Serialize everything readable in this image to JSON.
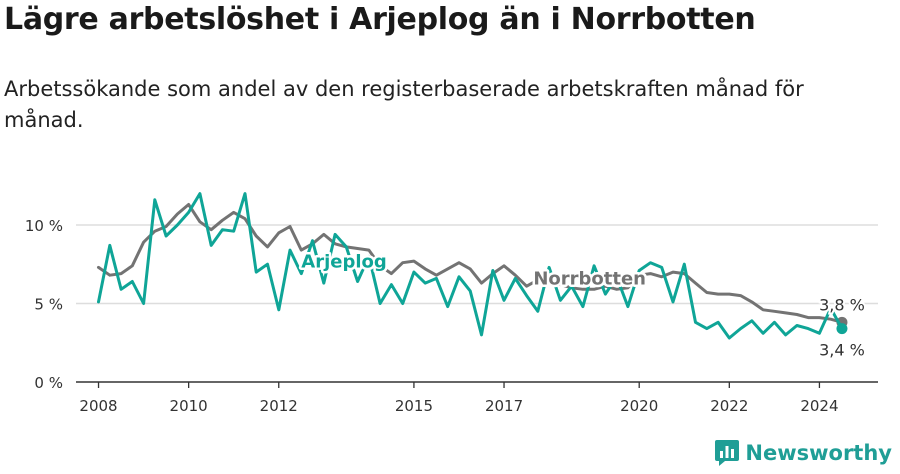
{
  "title": "Lägre arbetslöshet i Arjeplog än i Norrbotten",
  "subtitle": "Arbetssökande som andel av den registerbaserade arbetskraften månad för månad.",
  "brand": {
    "name": "Newsworthy",
    "icon": "bar-chart-logo-icon",
    "color": "#1f9e96"
  },
  "chart_data": {
    "type": "line",
    "xlabel": "",
    "ylabel": "",
    "xlim": [
      2007.5,
      2025.3
    ],
    "ylim": [
      0,
      13.5
    ],
    "grid": true,
    "y_ticks": [
      0,
      5,
      10
    ],
    "y_tick_labels": [
      "0 %",
      "5 %",
      "10 %"
    ],
    "x_ticks": [
      2008,
      2010,
      2012,
      2015,
      2017,
      2020,
      2022,
      2024
    ],
    "x_tick_labels": [
      "2008",
      "2010",
      "2012",
      "2015",
      "2017",
      "2020",
      "2022",
      "2024"
    ],
    "colors": {
      "Arjeplog": "#0fa597",
      "Norrbotten": "#737373",
      "grid": "#dddddd",
      "axis": "#333333"
    },
    "labels": [
      {
        "series": "Arjeplog",
        "text": "Arjeplog",
        "x": 2012.5,
        "y": 7.3
      },
      {
        "series": "Norrbotten",
        "text": "Norrbotten",
        "x": 2017.65,
        "y": 6.2
      }
    ],
    "end_labels": {
      "Norrbotten": "3,8 %",
      "Arjeplog": "3,4 %"
    },
    "series": [
      {
        "name": "Norrbotten",
        "x": [
          2008.0,
          2008.25,
          2008.5,
          2008.75,
          2009.0,
          2009.25,
          2009.5,
          2009.75,
          2010.0,
          2010.25,
          2010.5,
          2010.75,
          2011.0,
          2011.25,
          2011.5,
          2011.75,
          2012.0,
          2012.25,
          2012.5,
          2012.75,
          2013.0,
          2013.25,
          2013.5,
          2013.75,
          2014.0,
          2014.25,
          2014.5,
          2014.75,
          2015.0,
          2015.25,
          2015.5,
          2015.75,
          2016.0,
          2016.25,
          2016.5,
          2016.75,
          2017.0,
          2017.25,
          2017.5,
          2017.75,
          2018.0,
          2018.25,
          2018.5,
          2018.75,
          2019.0,
          2019.25,
          2019.5,
          2019.75,
          2020.0,
          2020.25,
          2020.5,
          2020.75,
          2021.0,
          2021.25,
          2021.5,
          2021.75,
          2022.0,
          2022.25,
          2022.5,
          2022.75,
          2023.0,
          2023.25,
          2023.5,
          2023.75,
          2024.0,
          2024.25,
          2024.5
        ],
        "y": [
          7.3,
          6.8,
          6.9,
          7.4,
          8.9,
          9.6,
          9.9,
          10.7,
          11.3,
          10.2,
          9.7,
          10.3,
          10.8,
          10.4,
          9.3,
          8.6,
          9.5,
          9.9,
          8.4,
          8.8,
          9.4,
          8.8,
          8.6,
          8.5,
          8.4,
          7.4,
          6.9,
          7.6,
          7.7,
          7.2,
          6.8,
          7.2,
          7.6,
          7.2,
          6.3,
          6.9,
          7.4,
          6.8,
          6.1,
          6.5,
          6.4,
          6.2,
          6.0,
          5.9,
          5.9,
          6.1,
          5.9,
          6.0,
          6.8,
          6.9,
          6.7,
          7.0,
          6.9,
          6.3,
          5.7,
          5.6,
          5.6,
          5.5,
          5.1,
          4.6,
          4.5,
          4.4,
          4.3,
          4.1,
          4.1,
          4.0,
          3.8
        ]
      },
      {
        "name": "Arjeplog",
        "x": [
          2008.0,
          2008.25,
          2008.5,
          2008.75,
          2009.0,
          2009.25,
          2009.5,
          2009.75,
          2010.0,
          2010.25,
          2010.5,
          2010.75,
          2011.0,
          2011.25,
          2011.5,
          2011.75,
          2012.0,
          2012.25,
          2012.5,
          2012.75,
          2013.0,
          2013.25,
          2013.5,
          2013.75,
          2014.0,
          2014.25,
          2014.5,
          2014.75,
          2015.0,
          2015.25,
          2015.5,
          2015.75,
          2016.0,
          2016.25,
          2016.5,
          2016.75,
          2017.0,
          2017.25,
          2017.5,
          2017.75,
          2018.0,
          2018.25,
          2018.5,
          2018.75,
          2019.0,
          2019.25,
          2019.5,
          2019.75,
          2020.0,
          2020.25,
          2020.5,
          2020.75,
          2021.0,
          2021.25,
          2021.5,
          2021.75,
          2022.0,
          2022.25,
          2022.5,
          2022.75,
          2023.0,
          2023.25,
          2023.5,
          2023.75,
          2024.0,
          2024.25,
          2024.5
        ],
        "y": [
          5.1,
          8.7,
          5.9,
          6.4,
          5.0,
          11.6,
          9.3,
          10.0,
          10.8,
          12.0,
          8.7,
          9.7,
          9.6,
          12.0,
          7.0,
          7.5,
          4.6,
          8.4,
          6.9,
          9.0,
          6.3,
          9.4,
          8.6,
          6.4,
          8.0,
          5.0,
          6.2,
          5.0,
          7.0,
          6.3,
          6.6,
          4.8,
          6.7,
          5.8,
          3.0,
          7.1,
          5.2,
          6.6,
          5.5,
          4.5,
          7.3,
          5.2,
          6.1,
          4.8,
          7.4,
          5.6,
          6.7,
          4.8,
          7.1,
          7.6,
          7.3,
          5.1,
          7.5,
          3.8,
          3.4,
          3.8,
          2.8,
          3.4,
          3.9,
          3.1,
          3.8,
          3.0,
          3.6,
          3.4,
          3.1,
          4.7,
          3.4
        ]
      }
    ]
  }
}
